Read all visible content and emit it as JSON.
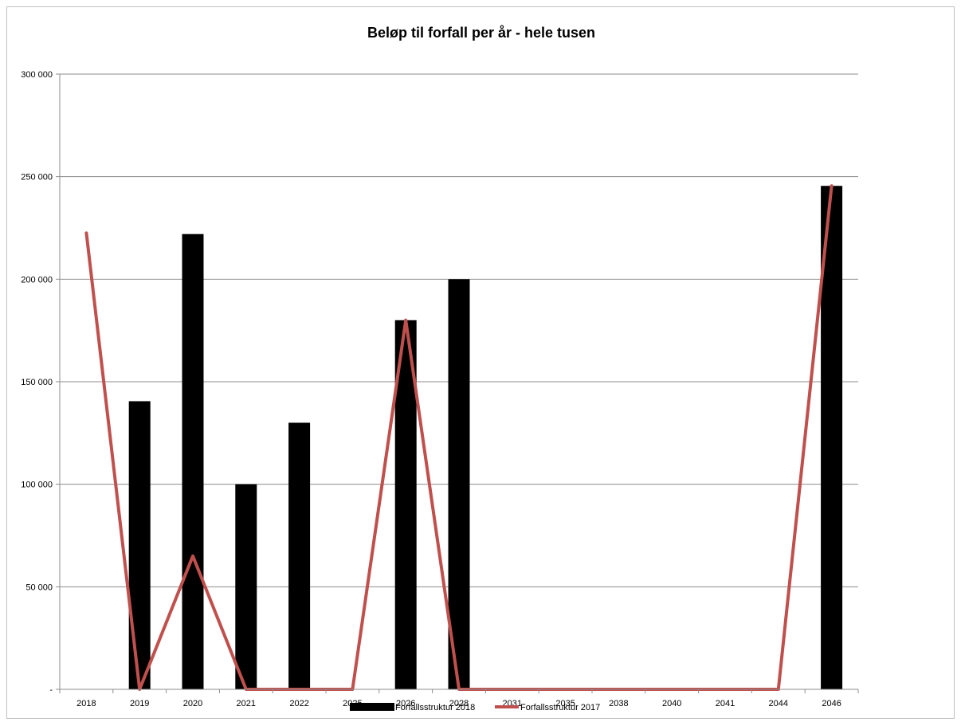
{
  "chart_data": {
    "type": "bar",
    "title": "Beløp til forfall per år - hele tusen",
    "xlabel": "",
    "ylabel": "",
    "categories": [
      "2018",
      "2019",
      "2020",
      "2021",
      "2022",
      "2025",
      "2026",
      "2028",
      "2031",
      "2035",
      "2038",
      "2040",
      "2041",
      "2044",
      "2046"
    ],
    "ylim": [
      0,
      300000
    ],
    "yticks": [
      {
        "value": 0,
        "label": "-"
      },
      {
        "value": 50000,
        "label": "50 000"
      },
      {
        "value": 100000,
        "label": "100 000"
      },
      {
        "value": 150000,
        "label": "150 000"
      },
      {
        "value": 200000,
        "label": "200 000"
      },
      {
        "value": 250000,
        "label": "250 000"
      },
      {
        "value": 300000,
        "label": "300 000"
      }
    ],
    "grid": true,
    "legend_position": "bottom",
    "series": [
      {
        "name": "Forfallsstruktur 2018",
        "type": "bar",
        "color": "#000000",
        "values": [
          0,
          140500,
          222000,
          100000,
          130000,
          0,
          180000,
          200000,
          0,
          0,
          0,
          0,
          0,
          0,
          245500
        ]
      },
      {
        "name": "Forfallsstruktur 2017",
        "type": "line",
        "color": "#c0504d",
        "values": [
          222500,
          0,
          65000,
          0,
          0,
          0,
          180000,
          0,
          0,
          0,
          0,
          0,
          0,
          0,
          245500
        ]
      }
    ]
  }
}
